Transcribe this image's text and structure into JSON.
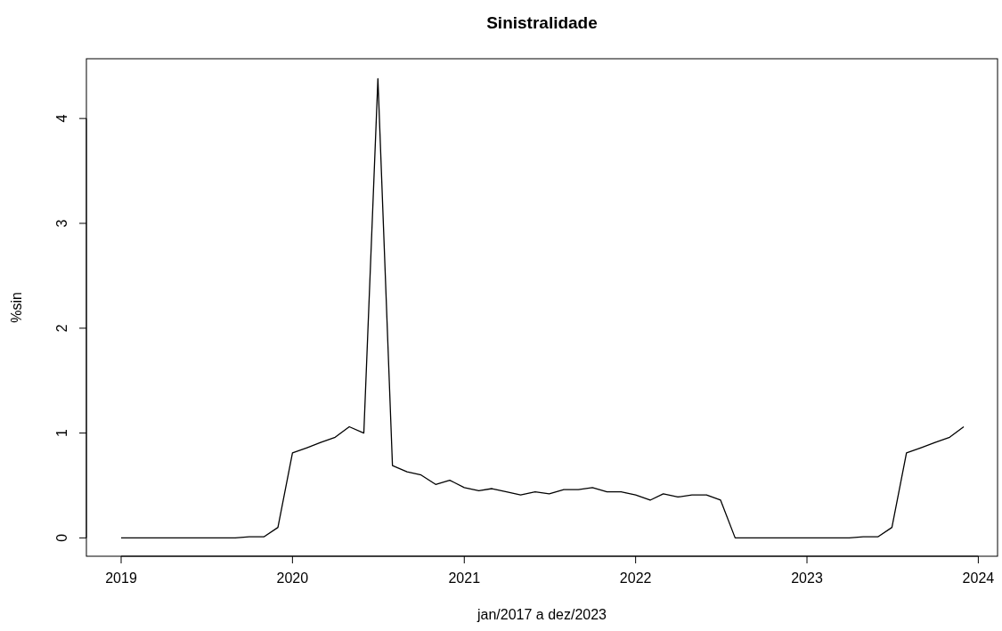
{
  "chart_data": {
    "type": "line",
    "title": "Sinistralidade",
    "xlabel": "jan/2017 a dez/2023",
    "ylabel": "%sin",
    "x": [
      "2019-01",
      "2019-02",
      "2019-03",
      "2019-04",
      "2019-05",
      "2019-06",
      "2019-07",
      "2019-08",
      "2019-09",
      "2019-10",
      "2019-11",
      "2019-12",
      "2020-01",
      "2020-02",
      "2020-03",
      "2020-04",
      "2020-05",
      "2020-06",
      "2020-07",
      "2020-08",
      "2020-09",
      "2020-10",
      "2020-11",
      "2020-12",
      "2021-01",
      "2021-02",
      "2021-03",
      "2021-04",
      "2021-05",
      "2021-06",
      "2021-07",
      "2021-08",
      "2021-09",
      "2021-10",
      "2021-11",
      "2021-12",
      "2022-01",
      "2022-02",
      "2022-03",
      "2022-04",
      "2022-05",
      "2022-06",
      "2022-07",
      "2022-08",
      "2022-09",
      "2022-10",
      "2022-11",
      "2022-12",
      "2023-01",
      "2023-02",
      "2023-03",
      "2023-04",
      "2023-05",
      "2023-06",
      "2023-07",
      "2023-08",
      "2023-09",
      "2023-10",
      "2023-11",
      "2023-12"
    ],
    "series": [
      {
        "color": "#000000",
        "values": [
          0,
          0,
          0,
          0,
          0,
          0,
          0,
          0,
          0,
          0.01,
          0.01,
          0.1,
          0.81,
          0.86,
          0.91,
          0.96,
          1.06,
          1.0,
          4.38,
          0.69,
          0.63,
          0.6,
          0.51,
          0.55,
          0.48,
          0.45,
          0.47,
          0.44,
          0.41,
          0.44,
          0.42,
          0.46,
          0.46,
          0.48,
          0.44,
          0.44,
          0.41,
          0.36,
          0.42,
          0.39,
          0.41,
          0.41,
          0.36,
          0,
          0,
          0,
          0,
          0,
          0,
          0,
          0,
          0,
          0.01,
          0.01,
          0.1,
          0.81,
          0.86,
          0.91,
          0.96,
          1.06
        ]
      }
    ],
    "xlim": [
      "2018-10-19",
      "2024-02-11"
    ],
    "xticks": [
      "2019",
      "2020",
      "2021",
      "2022",
      "2023",
      "2024"
    ],
    "ylim": [
      -0.175,
      4.57
    ],
    "yticks": [
      0,
      1,
      2,
      3,
      4
    ],
    "line_style": "solid",
    "marker": "none"
  }
}
